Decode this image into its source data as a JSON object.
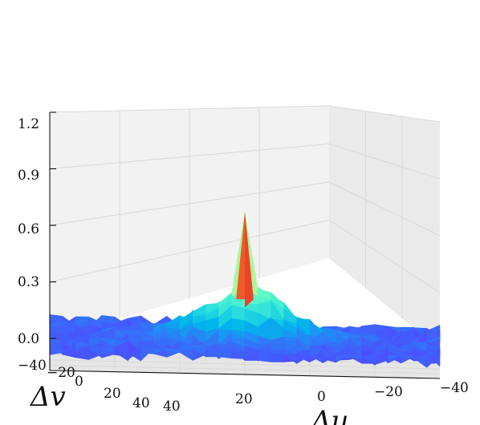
{
  "chart_data": {
    "type": "surface",
    "title": "",
    "xlabel": "Δu",
    "ylabel": "Δv",
    "zlabel": "",
    "x_ticks": [
      "40",
      "20",
      "0",
      "−20",
      "−40"
    ],
    "y_ticks": [
      "−40",
      "−20",
      "0",
      "20",
      "40"
    ],
    "z_ticks": [
      "0.0",
      "0.3",
      "0.6",
      "0.9",
      "1.2"
    ],
    "xlim": [
      -45,
      45
    ],
    "ylim": [
      -45,
      45
    ],
    "zlim": [
      0,
      1.2
    ],
    "grid": true,
    "colormap": "rainbow",
    "grid_step": 3,
    "peak": {
      "u": 0,
      "v": 0,
      "z": 0.98
    },
    "background_level_mean": 0.12,
    "background_noise": 0.05,
    "central_lobe_height": 0.35,
    "central_lobe_width": 10
  }
}
